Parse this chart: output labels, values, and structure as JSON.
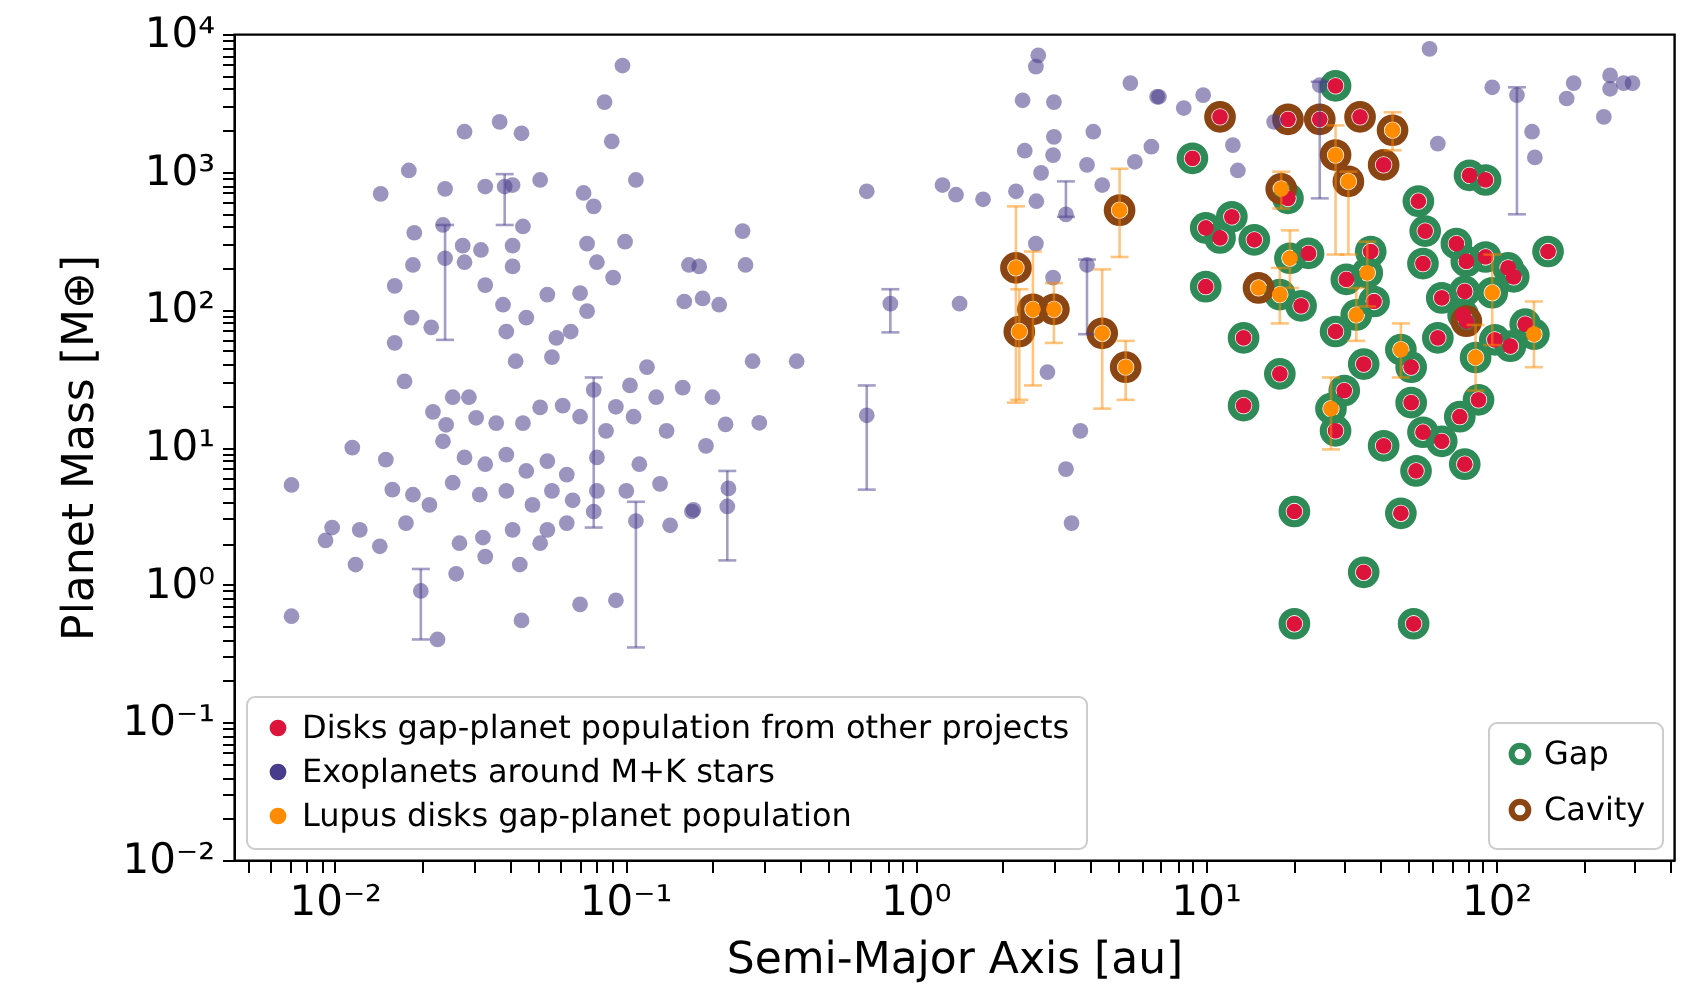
{
  "chart_data": {
    "type": "scatter",
    "xlabel": "Semi-Major Axis [au]",
    "ylabel": "Planet Mass [M⊕]",
    "log": "xy",
    "grid": false,
    "legend": "bottom left",
    "xlim": [
      0.0045,
      410
    ],
    "ylim": [
      0.01,
      10000
    ],
    "xticks": [
      {
        "value": 0.005,
        "label": null
      },
      {
        "value": 0.006,
        "label": null
      },
      {
        "value": 0.007,
        "label": null
      },
      {
        "value": 0.008,
        "label": null
      },
      {
        "value": 0.009,
        "label": null
      },
      {
        "value": 0.01,
        "label": "10⁻²"
      },
      {
        "value": 0.02,
        "label": null
      },
      {
        "value": 0.03,
        "label": null
      },
      {
        "value": 0.04,
        "label": null
      },
      {
        "value": 0.05,
        "label": null
      },
      {
        "value": 0.06,
        "label": null
      },
      {
        "value": 0.07,
        "label": null
      },
      {
        "value": 0.08,
        "label": null
      },
      {
        "value": 0.09,
        "label": null
      },
      {
        "value": 0.1,
        "label": "10⁻¹"
      },
      {
        "value": 0.2,
        "label": null
      },
      {
        "value": 0.3,
        "label": null
      },
      {
        "value": 0.4,
        "label": null
      },
      {
        "value": 0.5,
        "label": null
      },
      {
        "value": 0.6,
        "label": null
      },
      {
        "value": 0.7,
        "label": null
      },
      {
        "value": 0.8,
        "label": null
      },
      {
        "value": 0.9,
        "label": null
      },
      {
        "value": 1,
        "label": "10⁰"
      },
      {
        "value": 2,
        "label": null
      },
      {
        "value": 3,
        "label": null
      },
      {
        "value": 4,
        "label": null
      },
      {
        "value": 5,
        "label": null
      },
      {
        "value": 6,
        "label": null
      },
      {
        "value": 7,
        "label": null
      },
      {
        "value": 8,
        "label": null
      },
      {
        "value": 9,
        "label": null
      },
      {
        "value": 10,
        "label": "10¹"
      },
      {
        "value": 20,
        "label": null
      },
      {
        "value": 30,
        "label": null
      },
      {
        "value": 40,
        "label": null
      },
      {
        "value": 50,
        "label": null
      },
      {
        "value": 60,
        "label": null
      },
      {
        "value": 70,
        "label": null
      },
      {
        "value": 80,
        "label": null
      },
      {
        "value": 90,
        "label": null
      },
      {
        "value": 100,
        "label": "10²"
      },
      {
        "value": 200,
        "label": null
      },
      {
        "value": 300,
        "label": null
      },
      {
        "value": 400,
        "label": null
      }
    ],
    "yticks": [
      {
        "value": 0.01,
        "label": "10⁻²"
      },
      {
        "value": 0.02,
        "label": null
      },
      {
        "value": 0.03,
        "label": null
      },
      {
        "value": 0.04,
        "label": null
      },
      {
        "value": 0.05,
        "label": null
      },
      {
        "value": 0.06,
        "label": null
      },
      {
        "value": 0.07,
        "label": null
      },
      {
        "value": 0.08,
        "label": null
      },
      {
        "value": 0.09,
        "label": null
      },
      {
        "value": 0.1,
        "label": "10⁻¹"
      },
      {
        "value": 0.2,
        "label": null
      },
      {
        "value": 0.3,
        "label": null
      },
      {
        "value": 0.4,
        "label": null
      },
      {
        "value": 0.5,
        "label": null
      },
      {
        "value": 0.6,
        "label": null
      },
      {
        "value": 0.7,
        "label": null
      },
      {
        "value": 0.8,
        "label": null
      },
      {
        "value": 0.9,
        "label": null
      },
      {
        "value": 1,
        "label": "10⁰"
      },
      {
        "value": 2,
        "label": null
      },
      {
        "value": 3,
        "label": null
      },
      {
        "value": 4,
        "label": null
      },
      {
        "value": 5,
        "label": null
      },
      {
        "value": 6,
        "label": null
      },
      {
        "value": 7,
        "label": null
      },
      {
        "value": 8,
        "label": null
      },
      {
        "value": 9,
        "label": null
      },
      {
        "value": 10,
        "label": "10¹"
      },
      {
        "value": 20,
        "label": null
      },
      {
        "value": 30,
        "label": null
      },
      {
        "value": 40,
        "label": null
      },
      {
        "value": 50,
        "label": null
      },
      {
        "value": 60,
        "label": null
      },
      {
        "value": 70,
        "label": null
      },
      {
        "value": 80,
        "label": null
      },
      {
        "value": 90,
        "label": null
      },
      {
        "value": 100,
        "label": "10²"
      },
      {
        "value": 200,
        "label": null
      },
      {
        "value": 300,
        "label": null
      },
      {
        "value": 400,
        "label": null
      },
      {
        "value": 500,
        "label": null
      },
      {
        "value": 600,
        "label": null
      },
      {
        "value": 700,
        "label": null
      },
      {
        "value": 800,
        "label": null
      },
      {
        "value": 900,
        "label": null
      },
      {
        "value": 1000,
        "label": "10³"
      },
      {
        "value": 2000,
        "label": null
      },
      {
        "value": 3000,
        "label": null
      },
      {
        "value": 4000,
        "label": null
      },
      {
        "value": 5000,
        "label": null
      },
      {
        "value": 6000,
        "label": null
      },
      {
        "value": 7000,
        "label": null
      },
      {
        "value": 8000,
        "label": null
      },
      {
        "value": 9000,
        "label": null
      },
      {
        "value": 10000,
        "label": "10⁴"
      }
    ],
    "series": [
      {
        "name": "Disks gap-planet population from other projects",
        "color": "#dc143c",
        "marker": "circle",
        "x": [
          11.2,
          19.2,
          24.7,
          34,
          28,
          41,
          9.0,
          10.0,
          11.2,
          12.3,
          14.7,
          19.2,
          22.6,
          10.0,
          13.5,
          18.0,
          13.5,
          21.3,
          30.5,
          37,
          38,
          28,
          35,
          30,
          28,
          41,
          20.2,
          47,
          35,
          20.2,
          52,
          54,
          57,
          56,
          65,
          73,
          79,
          92,
          81,
          92,
          78,
          77,
          79,
          63,
          51,
          51,
          56,
          65,
          53,
          78,
          75,
          87,
          99,
          112,
          115,
          110,
          126,
          151
        ],
        "values": [
          2500,
          2400,
          2400,
          2500,
          4200,
          1120,
          1250,
          390,
          330,
          470,
          320,
          640,
          255,
          146,
          62,
          34,
          20,
          106,
          165,
          263,
          114,
          69,
          40,
          25.7,
          13.1,
          10.2,
          3.4,
          3.3,
          1.23,
          0.52,
          0.52,
          610,
          370,
          215,
          121,
          300,
          223,
          240,
          940,
          870,
          135,
          91,
          82,
          62,
          38,
          21,
          12.8,
          11,
          6.7,
          7.5,
          16.6,
          22,
          60,
          54,
          172,
          200,
          78,
          263
        ]
      },
      {
        "name": "Exoplanets around M+K stars",
        "color": "#483d8b",
        "marker": "circle",
        "x": [
          0.098,
          0.085,
          0.09,
          0.109,
          0.037,
          0.028,
          0.044,
          0.018,
          0.0144,
          0.024,
          0.033,
          0.0385,
          0.041,
          0.051,
          0.072,
          0.078,
          0.0188,
          0.0236,
          0.0445,
          0.0276,
          0.0319,
          0.041,
          0.074,
          0.1,
          0.0186,
          0.024,
          0.028,
          0.041,
          0.033,
          0.08,
          0.091,
          0.0161,
          0.054,
          0.07,
          0.074,
          0.038,
          0.0457,
          0.0184,
          0.0215,
          0.0161,
          0.039,
          0.058,
          0.065,
          0.0174,
          0.042,
          0.056,
          0.119,
          0.104,
          0.078,
          0.0255,
          0.029,
          0.0218,
          0.0242,
          0.0307,
          0.036,
          0.0445,
          0.051,
          0.061,
          0.07,
          0.093,
          0.128,
          0.107,
          0.0115,
          0.015,
          0.0236,
          0.028,
          0.033,
          0.039,
          0.0457,
          0.054,
          0.063,
          0.08,
          0.086,
          0.112,
          0.139,
          0.0071,
          0.0158,
          0.0186,
          0.0212,
          0.0255,
          0.0316,
          0.039,
          0.048,
          0.056,
          0.066,
          0.08,
          0.101,
          0.132,
          0.172,
          0.0098,
          0.0122,
          0.0093,
          0.0143,
          0.0176,
          0.0269,
          0.0324,
          0.041,
          0.054,
          0.063,
          0.078,
          0.109,
          0.143,
          0.0118,
          0.0198,
          0.0262,
          0.033,
          0.0434,
          0.051,
          0.044,
          0.07,
          0.093,
          0.0226,
          0.0071,
          0.16,
          0.185,
          0.211,
          0.166,
          0.18,
          0.254,
          0.26,
          0.275,
          0.39,
          0.158,
          0.2,
          0.222,
          0.29,
          0.19,
          0.17,
          0.225,
          0.227,
          0.68,
          0.82,
          1.42,
          0.68,
          1.24,
          1.38,
          1.71,
          2.22,
          2.61,
          2.38,
          2.71,
          2.98,
          3.0,
          2.34,
          3.0,
          2.65,
          2.6,
          3.3,
          2.6,
          2.98,
          2.85,
          3.7,
          3.3,
          3.45,
          3.9,
          4.1,
          3.9,
          4.4,
          5.5,
          5.7,
          6.8,
          6.5,
          6.9,
          8.4,
          9.8,
          12.4,
          12.9,
          17.2,
          24.7,
          59,
          63,
          97,
          118,
          133,
          136,
          175,
          185,
          235,
          247,
          247,
          275,
          295
        ],
        "values": [
          5900,
          3200,
          1660,
          870,
          2300,
          1950,
          1900,
          1020,
          690,
          750,
          780,
          780,
          800,
          870,
          700,
          560,
          360,
          410,
          400,
          290,
          270,
          290,
          300,
          310,
          210,
          235,
          220,
          205,
          150,
          220,
          170,
          148,
          128,
          131,
          97,
          108,
          87,
          87,
          74,
          57,
          69,
          62,
          69,
          30,
          42,
          45,
          38,
          28,
          26,
          23,
          23,
          18,
          14.5,
          16.3,
          14.9,
          14.9,
          19.4,
          20,
          16.6,
          19.6,
          23,
          16.6,
          9.9,
          8.1,
          11,
          8.4,
          7.5,
          8.8,
          6.7,
          7.9,
          6.3,
          8.4,
          13.1,
          7.5,
          13.1,
          5.3,
          4.9,
          4.5,
          3.8,
          5.5,
          4.5,
          4.8,
          3.8,
          4.8,
          4.1,
          4.8,
          4.8,
          5.4,
          3.5,
          2.6,
          2.5,
          2.1,
          1.9,
          2.8,
          2.0,
          2.2,
          2.5,
          2.5,
          2.8,
          3.4,
          2.9,
          2.7,
          1.4,
          0.9,
          1.2,
          1.6,
          1.4,
          2.0,
          0.55,
          0.72,
          0.77,
          0.4,
          0.59,
          114,
          120,
          108,
          210,
          205,
          370,
          210,
          42,
          42,
          27,
          23,
          14.6,
          15,
          10.2,
          3.4,
          3.7,
          5.0,
          720,
          110,
          110,
          17,
          800,
          680,
          630,
          720,
          610,
          1420,
          980,
          1320,
          1790,
          3300,
          3200,
          7000,
          5800,
          490,
          300,
          170,
          35,
          13.1,
          6.9,
          2.8,
          210,
          1950,
          1120,
          800,
          4400,
          1180,
          3500,
          1520,
          3500,
          2900,
          3600,
          1560,
          1020,
          2300,
          4250,
          7800,
          1600,
          4100,
          3600,
          1950,
          1270,
          3400,
          4400,
          2500,
          5000,
          4000,
          4400,
          4400
        ],
        "errors": [
          null,
          null,
          null,
          null,
          null,
          null,
          null,
          null,
          null,
          null,
          null,
          [
            410,
            960
          ],
          null,
          null,
          null,
          null,
          null,
          null,
          null,
          null,
          null,
          null,
          null,
          null,
          null,
          [
            60,
            410
          ],
          null,
          null,
          null,
          null,
          null,
          null,
          null,
          null,
          null,
          null,
          null,
          null,
          null,
          null,
          null,
          null,
          null,
          null,
          null,
          null,
          null,
          null,
          [
            2.6,
            32
          ],
          null,
          null,
          null,
          null,
          null,
          null,
          null,
          null,
          null,
          null,
          null,
          null,
          null,
          null,
          null,
          null,
          null,
          null,
          null,
          null,
          null,
          null,
          null,
          null,
          null,
          null,
          null,
          null,
          null,
          null,
          null,
          null,
          null,
          null,
          null,
          null,
          null,
          null,
          null,
          null,
          null,
          null,
          null,
          null,
          null,
          null,
          null,
          null,
          null,
          null,
          null,
          [
            0.35,
            4
          ],
          null,
          null,
          [
            0.4,
            1.3
          ],
          null,
          null,
          null,
          null,
          null,
          null,
          null,
          null,
          null,
          null,
          null,
          null,
          null,
          null,
          null,
          null,
          null,
          null,
          null,
          null,
          null,
          null,
          null,
          null,
          [
            1.5,
            6.7
          ],
          null,
          null,
          [
            68,
            140
          ],
          null,
          [
            4.9,
            28
          ],
          null,
          null,
          null,
          null,
          null,
          null,
          null,
          null,
          null,
          null,
          null,
          null,
          null,
          [
            470,
            850
          ],
          null,
          null,
          null,
          null,
          null,
          null,
          [
            66,
            230
          ],
          null,
          null,
          null,
          null,
          null,
          null,
          null,
          null,
          null,
          null,
          null,
          null,
          null,
          [
            640,
            4500
          ],
          null,
          null,
          null,
          [
            490,
            4100
          ],
          null,
          null,
          null,
          null,
          null,
          null,
          null,
          null,
          null
        ]
      },
      {
        "name": "Lupus disks gap-planet population",
        "color": "#ff8c00",
        "marker": "circle",
        "x": [
          2.22,
          2.28,
          2.54,
          3.0,
          4.4,
          5.3,
          5.05,
          44,
          28,
          31,
          18.2,
          19.5,
          15.2,
          18.0,
          36,
          33,
          47,
          27,
          85,
          97,
          135
        ],
        "values": [
          200,
          69,
          100,
          100,
          67,
          38,
          525,
          2000,
          1320,
          850,
          750,
          235,
          143,
          128,
          184,
          91,
          51,
          19,
          44.7,
          132,
          66
        ],
        "errors": [
          [
            21,
            560
          ],
          [
            22,
            140
          ],
          [
            28,
            263
          ],
          [
            57,
            155
          ],
          [
            19,
            195
          ],
          [
            22,
            59
          ],
          [
            240,
            1050
          ],
          [
            1430,
            2700
          ],
          [
            250,
            2170
          ],
          [
            250,
            1000
          ],
          [
            540,
            1000
          ],
          [
            143,
            375
          ],
          null,
          [
            79,
            200
          ],
          [
            105,
            310
          ],
          [
            59,
            143
          ],
          [
            32,
            79
          ],
          [
            9.6,
            32
          ],
          [
            25.7,
            77
          ],
          [
            55,
            250
          ],
          [
            38,
            114
          ]
        ]
      },
      {
        "name": "Gap",
        "color": "#2e8b57",
        "x": [
          28,
          9.0,
          10.0,
          11.2,
          12.3,
          14.7,
          19.2,
          22.6,
          10.0,
          13.5,
          18.0,
          13.5,
          21.3,
          30.5,
          37,
          38,
          28,
          35,
          30,
          28,
          41,
          20.2,
          47,
          35,
          20.2,
          52,
          54,
          57,
          56,
          65,
          73,
          79,
          92,
          81,
          92,
          78,
          77,
          63,
          51,
          51,
          56,
          65,
          53,
          78,
          75,
          87,
          99,
          112,
          115,
          110,
          126,
          151,
          19.5,
          18.0,
          36,
          33,
          47,
          27,
          85,
          97,
          135
        ],
        "values": [
          4200,
          1250,
          390,
          330,
          470,
          320,
          640,
          255,
          146,
          62,
          34,
          20,
          106,
          165,
          263,
          114,
          69,
          40,
          25.7,
          13.1,
          10.2,
          3.4,
          3.3,
          1.23,
          0.52,
          0.52,
          610,
          370,
          215,
          121,
          300,
          223,
          240,
          940,
          870,
          135,
          91,
          62,
          38,
          21,
          12.8,
          11,
          6.7,
          7.5,
          16.6,
          22,
          60,
          54,
          172,
          200,
          78,
          263,
          235,
          128,
          184,
          91,
          51,
          19,
          44.7,
          132,
          66
        ]
      },
      {
        "name": "Cavity",
        "color": "#8b4513",
        "x": [
          11.2,
          19.2,
          24.7,
          34,
          41,
          79,
          2.22,
          2.28,
          2.54,
          3.0,
          4.4,
          5.3,
          5.05,
          44,
          28,
          31,
          18.2,
          15.2
        ],
        "values": [
          2500,
          2400,
          2400,
          2500,
          1120,
          82,
          200,
          69,
          100,
          100,
          67,
          38,
          525,
          2000,
          1320,
          850,
          750,
          143
        ]
      }
    ]
  }
}
